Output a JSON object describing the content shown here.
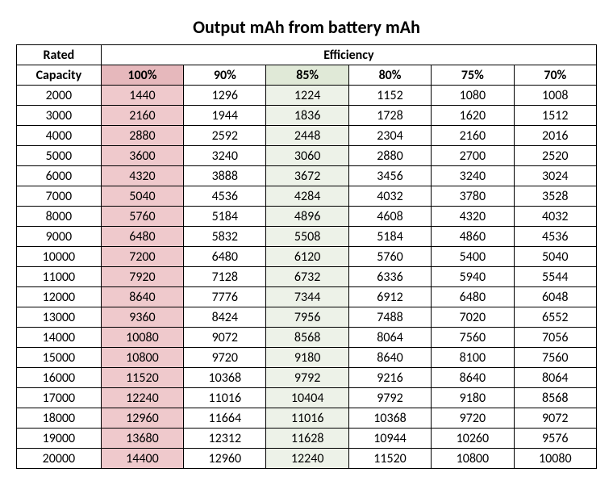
{
  "title": "Output mAh from battery mAh",
  "header": {
    "rated": "Rated",
    "efficiency": "Efficiency",
    "capacity": "Capacity"
  },
  "efficiency_columns": [
    {
      "label": "100%",
      "highlight": "pink"
    },
    {
      "label": "90%",
      "highlight": "none"
    },
    {
      "label": "85%",
      "highlight": "green"
    },
    {
      "label": "80%",
      "highlight": "none"
    },
    {
      "label": "75%",
      "highlight": "none"
    },
    {
      "label": "70%",
      "highlight": "none"
    }
  ],
  "rows": [
    {
      "capacity": "2000",
      "values": [
        "1440",
        "1296",
        "1224",
        "1152",
        "1080",
        "1008"
      ]
    },
    {
      "capacity": "3000",
      "values": [
        "2160",
        "1944",
        "1836",
        "1728",
        "1620",
        "1512"
      ]
    },
    {
      "capacity": "4000",
      "values": [
        "2880",
        "2592",
        "2448",
        "2304",
        "2160",
        "2016"
      ]
    },
    {
      "capacity": "5000",
      "values": [
        "3600",
        "3240",
        "3060",
        "2880",
        "2700",
        "2520"
      ]
    },
    {
      "capacity": "6000",
      "values": [
        "4320",
        "3888",
        "3672",
        "3456",
        "3240",
        "3024"
      ]
    },
    {
      "capacity": "7000",
      "values": [
        "5040",
        "4536",
        "4284",
        "4032",
        "3780",
        "3528"
      ]
    },
    {
      "capacity": "8000",
      "values": [
        "5760",
        "5184",
        "4896",
        "4608",
        "4320",
        "4032"
      ]
    },
    {
      "capacity": "9000",
      "values": [
        "6480",
        "5832",
        "5508",
        "5184",
        "4860",
        "4536"
      ]
    },
    {
      "capacity": "10000",
      "values": [
        "7200",
        "6480",
        "6120",
        "5760",
        "5400",
        "5040"
      ]
    },
    {
      "capacity": "11000",
      "values": [
        "7920",
        "7128",
        "6732",
        "6336",
        "5940",
        "5544"
      ]
    },
    {
      "capacity": "12000",
      "values": [
        "8640",
        "7776",
        "7344",
        "6912",
        "6480",
        "6048"
      ]
    },
    {
      "capacity": "13000",
      "values": [
        "9360",
        "8424",
        "7956",
        "7488",
        "7020",
        "6552"
      ]
    },
    {
      "capacity": "14000",
      "values": [
        "10080",
        "9072",
        "8568",
        "8064",
        "7560",
        "7056"
      ]
    },
    {
      "capacity": "15000",
      "values": [
        "10800",
        "9720",
        "9180",
        "8640",
        "8100",
        "7560"
      ]
    },
    {
      "capacity": "16000",
      "values": [
        "11520",
        "10368",
        "9792",
        "9216",
        "8640",
        "8064"
      ]
    },
    {
      "capacity": "17000",
      "values": [
        "12240",
        "11016",
        "10404",
        "9792",
        "9180",
        "8568"
      ]
    },
    {
      "capacity": "18000",
      "values": [
        "12960",
        "11664",
        "11016",
        "10368",
        "9720",
        "9072"
      ]
    },
    {
      "capacity": "19000",
      "values": [
        "13680",
        "12312",
        "11628",
        "10944",
        "10260",
        "9576"
      ]
    },
    {
      "capacity": "20000",
      "values": [
        "14400",
        "12960",
        "12240",
        "11520",
        "10800",
        "10080"
      ]
    }
  ],
  "styling": {
    "title_fontsize": 22,
    "cell_fontsize": 16,
    "border_color": "#000000",
    "background_color": "#ffffff",
    "pink_color": "#efc9cc",
    "pink_header_color": "#e6b8bc",
    "green_color": "#edf2e8",
    "green_header_color": "#e0e9d7"
  }
}
